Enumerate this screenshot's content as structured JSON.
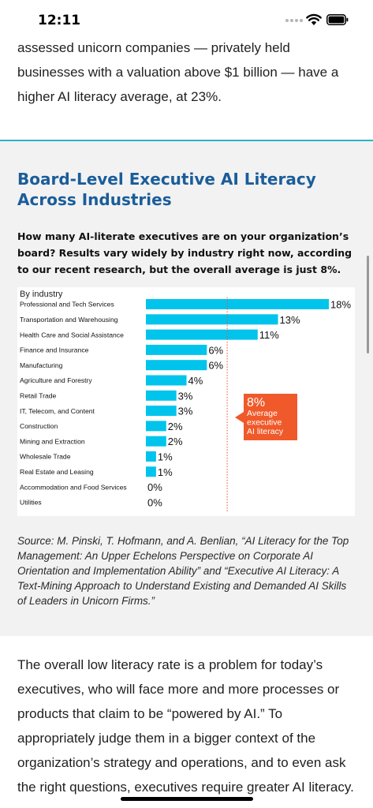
{
  "status_bar": {
    "time": "12:11",
    "icons": [
      "signal-dots-icon",
      "wifi-icon",
      "battery-icon"
    ]
  },
  "article": {
    "intro": "assessed unicorn companies — privately held businesses with a valuation above $1 billion — have a higher AI literacy average, at 23%.",
    "outro": "The overall low literacy rate is a problem for today’s executives, who will face more and more processes or products that claim to be “powered by AI.” To appropriately judge them in a bigger context of the organization’s strategy and operations, and to even ask the right questions, executives require greater AI literacy."
  },
  "chart_section": {
    "title": "Board-Level Executive AI Literacy Across Industries",
    "subtitle": "How many AI-literate executives are on your organization’s board? Results vary widely by industry right now, according to our recent research, but the overall average is just 8%.",
    "source": "Source: M. Pinski, T. Hofmann, and A. Benlian, “AI Literacy for the Top Management: An Upper Echelons Perspective on Corporate AI Orientation and Implementation Ability” and “Executive AI Literacy: A Text-Mining Approach to Understand Existing and Demanded AI Skills of Leaders in Unicorn Firms.”"
  },
  "chart_data": {
    "type": "bar",
    "orientation": "horizontal",
    "panel_label": "By industry",
    "categories": [
      "Professional and Tech Services",
      "Transportation and Warehousing",
      "Health Care and Social Assistance",
      "Finance and Insurance",
      "Manufacturing",
      "Agriculture and Forestry",
      "Retail Trade",
      "IT, Telecom, and Content",
      "Construction",
      "Mining and Extraction",
      "Wholesale Trade",
      "Real Estate and Leasing",
      "Accommodation and Food Services",
      "Utilities"
    ],
    "values": [
      18,
      13,
      11,
      6,
      6,
      4,
      3,
      3,
      2,
      2,
      1,
      1,
      0,
      0
    ],
    "value_labels": [
      "18%",
      "13%",
      "11%",
      "6%",
      "6%",
      "4%",
      "3%",
      "3%",
      "2%",
      "2%",
      "1%",
      "1%",
      "0%",
      "0%"
    ],
    "average": {
      "value": 8,
      "label_value": "8%",
      "label_text": [
        "Average",
        "executive",
        "AI literacy"
      ]
    },
    "xlim": [
      0,
      18
    ],
    "grid": false,
    "colors": {
      "bar": "#00c4ec",
      "average_line": "#e8542a",
      "callout": "#f0592a",
      "section_rule": "#2ab3cc",
      "title": "#1a5d9a"
    }
  }
}
